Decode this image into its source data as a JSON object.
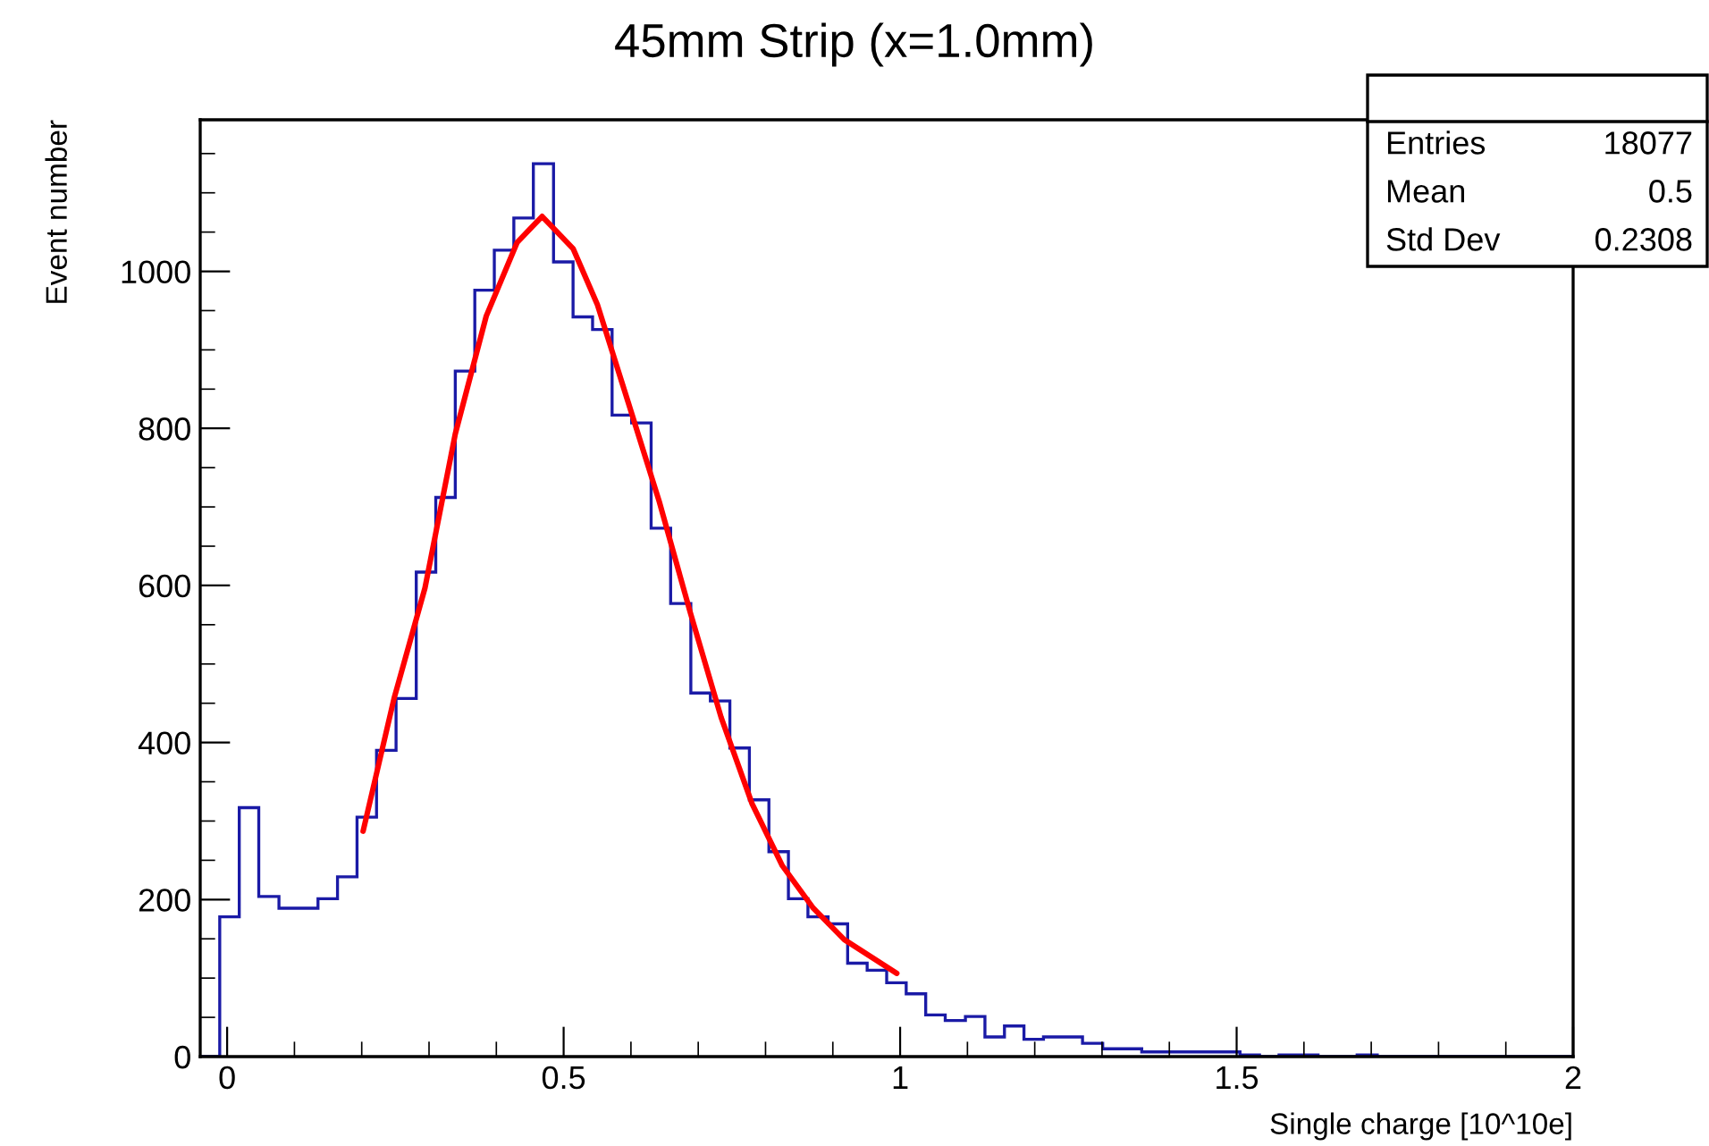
{
  "chart_data": {
    "type": "histogram",
    "title": "45mm Strip (x=1.0mm)",
    "xlabel": "Single charge [10^10e]",
    "ylabel": "Event number",
    "annotations": [
      "Entries",
      "18077",
      "Mean",
      "0.5",
      "Std Dev",
      "0.2308"
    ],
    "bins": [
      -0.04,
      -0.011,
      0.018,
      0.047,
      0.077,
      0.106,
      0.135,
      0.164,
      0.193,
      0.222,
      0.251,
      0.281,
      0.31,
      0.339,
      0.368,
      0.397,
      0.426,
      0.455,
      0.485,
      0.514,
      0.543,
      0.572,
      0.601,
      0.63,
      0.659,
      0.689,
      0.718,
      0.747,
      0.776,
      0.805,
      0.834,
      0.863,
      0.893,
      0.922,
      0.951,
      0.98,
      1.009,
      1.038,
      1.067,
      1.097,
      1.126,
      1.155,
      1.184,
      1.213,
      1.242,
      1.271,
      1.301,
      1.33,
      1.359,
      1.388,
      1.417,
      1.446,
      1.475,
      1.505,
      1.534,
      1.563,
      1.592,
      1.621,
      1.65,
      1.679,
      1.709,
      1.738,
      1.767,
      1.796,
      1.825,
      1.854,
      1.883,
      1.913,
      1.942,
      1.971,
      2.0
    ],
    "series": [
      {
        "color": "#1a1aa6",
        "values": [
          0,
          178,
          317,
          204,
          189,
          189,
          201,
          229,
          305,
          390,
          456,
          617,
          712,
          873,
          976,
          1027,
          1068,
          1137,
          1012,
          942,
          926,
          817,
          807,
          673,
          577,
          463,
          453,
          393,
          327,
          261,
          201,
          178,
          169,
          119,
          110,
          94,
          80,
          53,
          46,
          51,
          25,
          39,
          22,
          25,
          25,
          17,
          10,
          10,
          6,
          6,
          6,
          6,
          6,
          2,
          0,
          2,
          2,
          0,
          0,
          2,
          0,
          0,
          0,
          0,
          0,
          0,
          0,
          0,
          0,
          0
        ]
      },
      {
        "type": "line",
        "color": "#ff0000",
        "x": [
          0.202,
          0.248,
          0.294,
          0.339,
          0.385,
          0.431,
          0.468,
          0.514,
          0.55,
          0.596,
          0.642,
          0.688,
          0.734,
          0.78,
          0.825,
          0.871,
          0.917,
          0.995
        ],
        "values": [
          287,
          456,
          597,
          793,
          943,
          1037,
          1070,
          1029,
          958,
          833,
          707,
          566,
          432,
          322,
          243,
          189,
          149,
          106
        ]
      }
    ],
    "xlim": [
      -0.04,
      2.0
    ],
    "xticks": [
      0,
      0.5,
      1,
      1.5,
      2
    ],
    "ylim": [
      0,
      1193
    ],
    "yticks": [
      0,
      200,
      400,
      600,
      800,
      1000
    ],
    "grid": false,
    "legend": false
  }
}
